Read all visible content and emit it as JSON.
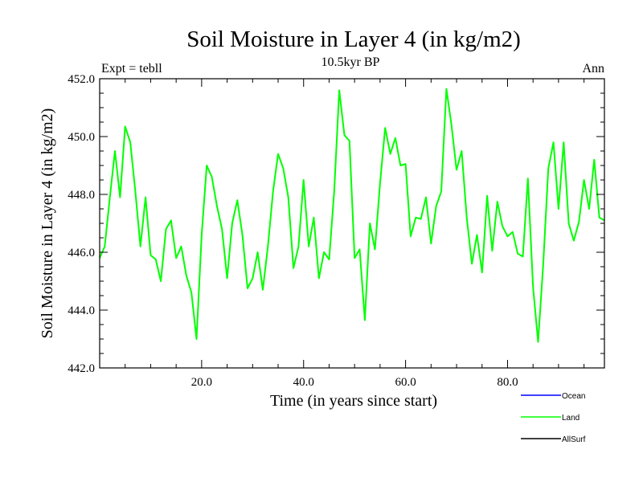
{
  "chart_data": {
    "type": "line",
    "title": "Soil Moisture in Layer 4 (in kg/m2)",
    "subtitle": "10.5kyr BP",
    "left_label": "Expt = tebll",
    "right_label": "Ann",
    "xlabel": "Time (in years since start)",
    "ylabel": "Soil Moisture in Layer 4 (in kg/m2)",
    "xlim": [
      0,
      99
    ],
    "ylim": [
      442.0,
      452.0
    ],
    "xticks": [
      20,
      40,
      60,
      80
    ],
    "xtick_labels": [
      "20.0",
      "40.0",
      "60.0",
      "80.0"
    ],
    "yticks": [
      442,
      444,
      446,
      448,
      450,
      452
    ],
    "ytick_labels": [
      "442.0",
      "444.0",
      "446.0",
      "448.0",
      "450.0",
      "452.0"
    ],
    "legend": [
      {
        "name": "Ocean",
        "color": "#0000ff"
      },
      {
        "name": "Land",
        "color": "#00ff00"
      },
      {
        "name": "AllSurf",
        "color": "#000000"
      }
    ],
    "series": [
      {
        "name": "Land",
        "color": "#00ff00",
        "x": [
          0,
          1,
          2,
          3,
          4,
          5,
          6,
          7,
          8,
          9,
          10,
          11,
          12,
          13,
          14,
          15,
          16,
          17,
          18,
          19,
          20,
          21,
          22,
          23,
          24,
          25,
          26,
          27,
          28,
          29,
          30,
          31,
          32,
          33,
          34,
          35,
          36,
          37,
          38,
          39,
          40,
          41,
          42,
          43,
          44,
          45,
          46,
          47,
          48,
          49,
          50,
          51,
          52,
          53,
          54,
          55,
          56,
          57,
          58,
          59,
          60,
          61,
          62,
          63,
          64,
          65,
          66,
          67,
          68,
          69,
          70,
          71,
          72,
          73,
          74,
          75,
          76,
          77,
          78,
          79,
          80,
          81,
          82,
          83,
          84,
          85,
          86,
          87,
          88,
          89,
          90,
          91,
          92,
          93,
          94,
          95,
          96,
          97,
          98,
          99
        ],
        "values": [
          445.8,
          446.2,
          447.9,
          449.5,
          447.9,
          450.35,
          449.8,
          448.1,
          446.2,
          447.9,
          445.9,
          445.75,
          445.0,
          446.8,
          447.1,
          445.8,
          446.2,
          445.2,
          444.6,
          443.0,
          446.6,
          449.0,
          448.6,
          447.6,
          446.8,
          445.1,
          447.0,
          447.8,
          446.6,
          444.75,
          445.1,
          446.0,
          444.7,
          446.2,
          448.1,
          449.4,
          448.9,
          447.9,
          445.45,
          446.2,
          448.5,
          446.2,
          447.2,
          445.1,
          446.0,
          445.75,
          448.1,
          451.6,
          450.05,
          449.85,
          445.8,
          446.1,
          443.65,
          447.0,
          446.1,
          448.4,
          450.3,
          449.4,
          449.95,
          449.0,
          449.05,
          446.55,
          447.2,
          447.15,
          447.9,
          446.3,
          447.6,
          448.1,
          451.65,
          450.4,
          448.85,
          449.5,
          447.2,
          445.6,
          446.6,
          445.3,
          447.95,
          446.05,
          447.75,
          446.9,
          446.55,
          446.7,
          445.95,
          445.85,
          448.55,
          444.8,
          442.9,
          445.6,
          448.9,
          449.8,
          447.5,
          449.8,
          447.0,
          446.4,
          447.05,
          448.5,
          447.5,
          449.2,
          447.2,
          447.1
        ]
      }
    ]
  }
}
